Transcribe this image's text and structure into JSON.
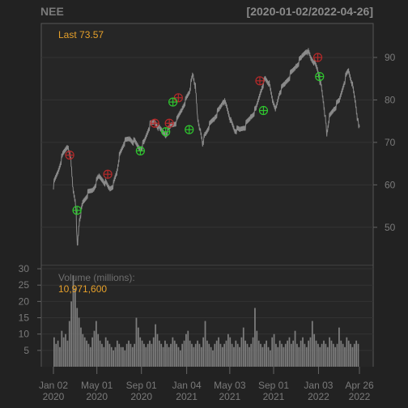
{
  "chart_data": {
    "type": "line",
    "symbol": "NEE",
    "date_range": "[2020-01-02/2022-04-26]",
    "last_label": "Last 73.57",
    "volume_label": "Volume (millions):",
    "volume_value": "10,971,600",
    "price_axis": {
      "ticks": [
        50,
        60,
        70,
        80,
        90
      ],
      "range": [
        41,
        98
      ]
    },
    "volume_axis": {
      "ticks": [
        5,
        10,
        15,
        20,
        25,
        30
      ],
      "range": [
        0,
        31
      ]
    },
    "x_ticks": [
      {
        "line1": "Jan 02",
        "line2": "2020",
        "day": 0
      },
      {
        "line1": "May 01",
        "line2": "2020",
        "day": 120
      },
      {
        "line1": "Sep 01",
        "line2": "2020",
        "day": 243
      },
      {
        "line1": "Jan 04",
        "line2": "2021",
        "day": 368
      },
      {
        "line1": "May 03",
        "line2": "2021",
        "day": 487
      },
      {
        "line1": "Sep 01",
        "line2": "2021",
        "day": 608
      },
      {
        "line1": "Jan 03",
        "line2": "2022",
        "day": 732
      },
      {
        "line1": "Apr 26",
        "line2": "2022",
        "day": 845
      }
    ],
    "price_series": [
      [
        0,
        60
      ],
      [
        12,
        63
      ],
      [
        25,
        67
      ],
      [
        40,
        69.5
      ],
      [
        48,
        66
      ],
      [
        55,
        58
      ],
      [
        62,
        55
      ],
      [
        66,
        45
      ],
      [
        72,
        52
      ],
      [
        82,
        56
      ],
      [
        95,
        58
      ],
      [
        110,
        59
      ],
      [
        125,
        62
      ],
      [
        140,
        61
      ],
      [
        155,
        59
      ],
      [
        165,
        60
      ],
      [
        175,
        63
      ],
      [
        182,
        67
      ],
      [
        195,
        70
      ],
      [
        210,
        71
      ],
      [
        225,
        70
      ],
      [
        240,
        68.5
      ],
      [
        250,
        70
      ],
      [
        265,
        74
      ],
      [
        280,
        75
      ],
      [
        295,
        73
      ],
      [
        310,
        72
      ],
      [
        325,
        74
      ],
      [
        340,
        75
      ],
      [
        355,
        78
      ],
      [
        365,
        80
      ],
      [
        375,
        82
      ],
      [
        385,
        86
      ],
      [
        392,
        83
      ],
      [
        398,
        76
      ],
      [
        405,
        73
      ],
      [
        412,
        70
      ],
      [
        420,
        72
      ],
      [
        430,
        74
      ],
      [
        445,
        76
      ],
      [
        460,
        78
      ],
      [
        470,
        80
      ],
      [
        480,
        78
      ],
      [
        490,
        75
      ],
      [
        500,
        73
      ],
      [
        515,
        73
      ],
      [
        530,
        74
      ],
      [
        545,
        76
      ],
      [
        560,
        78
      ],
      [
        575,
        83
      ],
      [
        585,
        85
      ],
      [
        595,
        84
      ],
      [
        605,
        80
      ],
      [
        615,
        78
      ],
      [
        625,
        82
      ],
      [
        640,
        84
      ],
      [
        655,
        86
      ],
      [
        670,
        88
      ],
      [
        685,
        90
      ],
      [
        700,
        92
      ],
      [
        710,
        90
      ],
      [
        720,
        89
      ],
      [
        730,
        87
      ],
      [
        740,
        83
      ],
      [
        748,
        78
      ],
      [
        755,
        72
      ],
      [
        762,
        76
      ],
      [
        775,
        78
      ],
      [
        790,
        80
      ],
      [
        805,
        85
      ],
      [
        815,
        87
      ],
      [
        825,
        84
      ],
      [
        835,
        79
      ],
      [
        842,
        74
      ],
      [
        845,
        73.57
      ]
    ],
    "buy_signals": [
      [
        65,
        54
      ],
      [
        240,
        68
      ],
      [
        310,
        72.5
      ],
      [
        330,
        79.5
      ],
      [
        375,
        73
      ],
      [
        580,
        77.5
      ],
      [
        735,
        85.5
      ]
    ],
    "sell_signals": [
      [
        45,
        67
      ],
      [
        150,
        62.5
      ],
      [
        280,
        74.5
      ],
      [
        320,
        74.5
      ],
      [
        345,
        80.5
      ],
      [
        570,
        84.5
      ],
      [
        730,
        90
      ]
    ],
    "volume_bars": [
      9,
      7,
      8,
      6,
      11,
      9,
      10,
      8,
      14,
      20,
      28,
      24,
      18,
      15,
      12,
      10,
      9,
      8,
      7,
      6,
      9,
      11,
      14,
      10,
      8,
      7,
      6,
      9,
      8,
      7,
      6,
      5,
      6,
      8,
      7,
      6,
      6,
      5,
      7,
      8,
      7,
      6,
      7,
      15,
      12,
      9,
      8,
      7,
      6,
      7,
      8,
      7,
      9,
      13,
      10,
      8,
      7,
      6,
      8,
      7,
      6,
      7,
      9,
      8,
      7,
      6,
      5,
      7,
      8,
      10,
      11,
      8,
      7,
      6,
      7,
      8,
      7,
      6,
      9,
      14,
      8,
      7,
      6,
      5,
      7,
      8,
      9,
      7,
      6,
      7,
      8,
      10,
      9,
      7,
      6,
      8,
      7,
      6,
      9,
      12,
      8,
      7,
      6,
      7,
      9,
      18,
      11,
      8,
      7,
      6,
      7,
      8,
      6,
      5,
      9,
      10,
      7,
      6,
      8,
      7,
      6,
      7,
      8,
      9,
      7,
      8,
      11,
      7,
      6,
      8,
      9,
      7,
      6,
      8,
      9,
      14,
      10,
      8,
      7,
      6,
      7,
      8,
      7,
      6,
      9,
      8,
      7,
      6,
      7,
      12,
      8,
      7,
      6,
      9,
      8,
      7,
      6,
      7,
      8,
      7
    ]
  }
}
